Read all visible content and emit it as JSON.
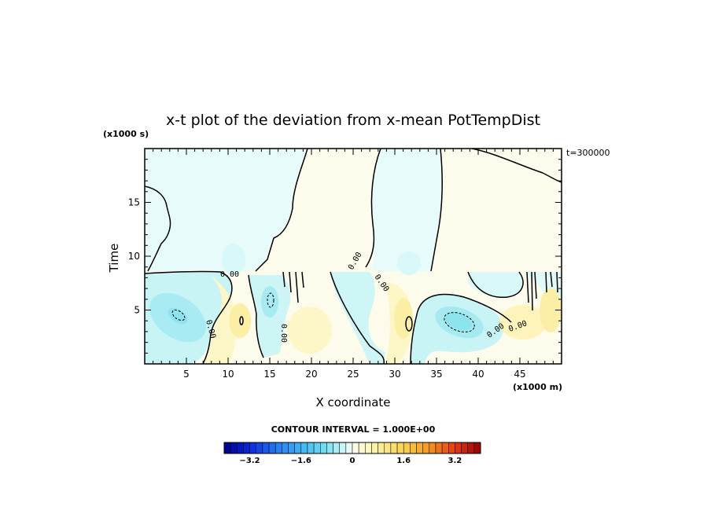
{
  "chart_data": {
    "type": "heatmap",
    "title": "x-t plot of the deviation from x-mean PotTempDist",
    "xlabel": "X coordinate",
    "ylabel": "Time",
    "x_unit": "(x1000 m)",
    "y_unit": "(x1000 s)",
    "time_stamp": "t=300000",
    "xlim": [
      0,
      50
    ],
    "ylim": [
      0,
      20
    ],
    "x_ticks": [
      5,
      10,
      15,
      20,
      25,
      30,
      35,
      40,
      45
    ],
    "y_ticks": [
      5,
      10,
      15
    ],
    "contour_interval_text": "CONTOUR INTERVAL = 1.000E+00",
    "contour_interval": 1.0,
    "zero_contour_labels": [
      "0.00",
      "0.00",
      "0.00",
      "0.00",
      "0.00",
      "0.00",
      "0.00"
    ],
    "colorbar": {
      "range": [
        -4.0,
        4.0
      ],
      "step": 0.2,
      "tick_values": [
        -3.2,
        -1.6,
        0,
        1.6,
        3.2
      ],
      "tick_labels": [
        "−3.2",
        "−1.6",
        "0",
        "1.6",
        "3.2"
      ]
    },
    "features": [
      {
        "kind": "negative_anomaly",
        "x": 4,
        "t": 4.6,
        "min_value": -1.2
      },
      {
        "kind": "positive_anomaly",
        "x": 11,
        "t": 4.0,
        "max_value": 0.6
      },
      {
        "kind": "negative_anomaly",
        "x": 15,
        "t": 6.0,
        "min_value": -1.0
      },
      {
        "kind": "positive_anomaly",
        "x": 31.5,
        "t": 3.8,
        "max_value": 0.8
      },
      {
        "kind": "negative_anomaly",
        "x": 37.5,
        "t": 4.2,
        "min_value": -1.4
      }
    ]
  }
}
